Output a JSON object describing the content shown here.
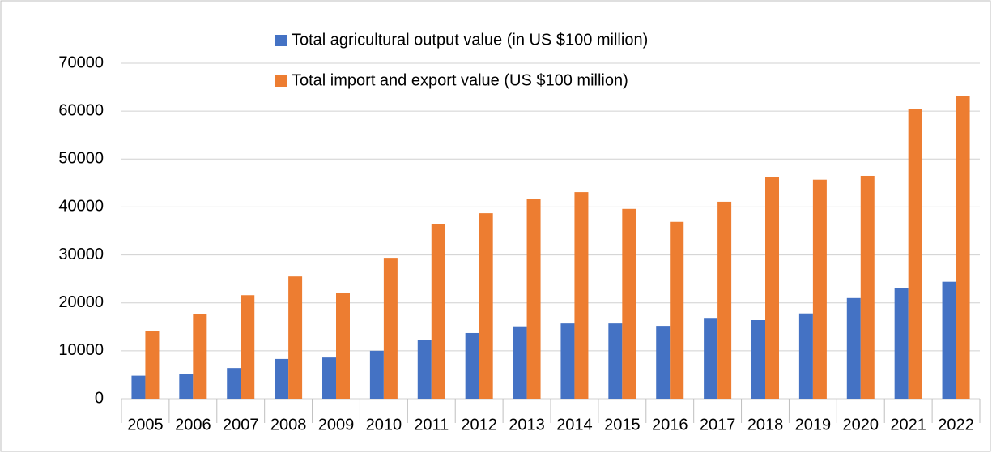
{
  "chart_data": {
    "type": "bar",
    "categories": [
      "2005",
      "2006",
      "2007",
      "2008",
      "2009",
      "2010",
      "2011",
      "2012",
      "2013",
      "2014",
      "2015",
      "2016",
      "2017",
      "2018",
      "2019",
      "2020",
      "2021",
      "2022"
    ],
    "series": [
      {
        "name": "Total agricultural output value (in US $100 million)",
        "color": "#4472c4",
        "values": [
          4800,
          5100,
          6400,
          8300,
          8600,
          10000,
          12200,
          13700,
          15100,
          15700,
          15700,
          15200,
          16700,
          16400,
          17800,
          21000,
          23000,
          24400
        ]
      },
      {
        "name": "Total import and export value (US $100 million)",
        "color": "#ed7d31",
        "values": [
          14200,
          17600,
          21600,
          25500,
          22100,
          29400,
          36500,
          38700,
          41600,
          43100,
          39600,
          36900,
          41100,
          46200,
          45700,
          46500,
          60500,
          63100
        ]
      }
    ],
    "ylim": [
      0,
      70000
    ],
    "yticks": [
      0,
      10000,
      20000,
      30000,
      40000,
      50000,
      60000,
      70000
    ],
    "grid": true
  }
}
